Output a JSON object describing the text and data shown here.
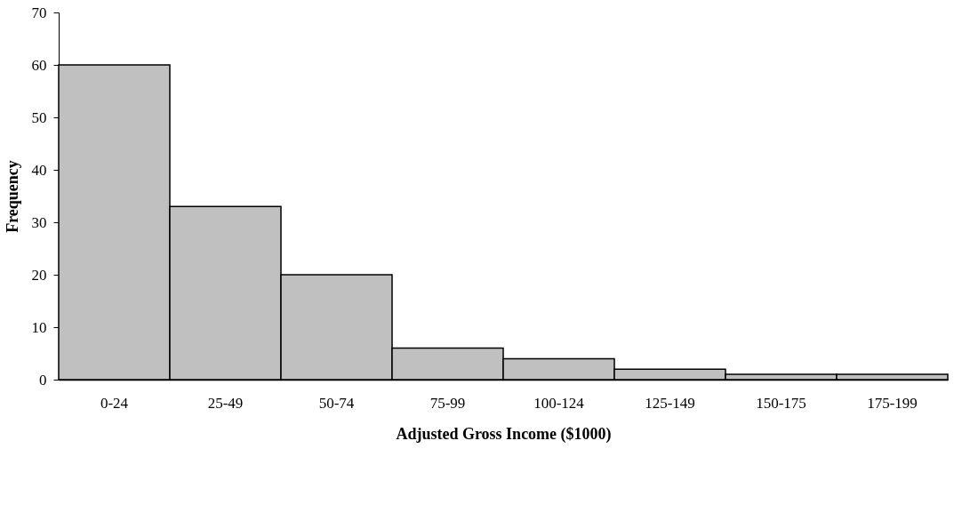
{
  "chart_data": {
    "type": "bar",
    "xlabel": "Adjusted Gross Income ($1000)",
    "ylabel": "Frequency",
    "categories": [
      "0-24",
      "25-49",
      "50-74",
      "75-99",
      "100-124",
      "125-149",
      "150-175",
      "175-199"
    ],
    "values": [
      60,
      33,
      20,
      6,
      4,
      2,
      1,
      1
    ],
    "color": "#c0c0c0",
    "ylim": [
      0,
      70
    ],
    "yticks": [
      0,
      10,
      20,
      30,
      40,
      50,
      60,
      70
    ],
    "grid": false
  }
}
